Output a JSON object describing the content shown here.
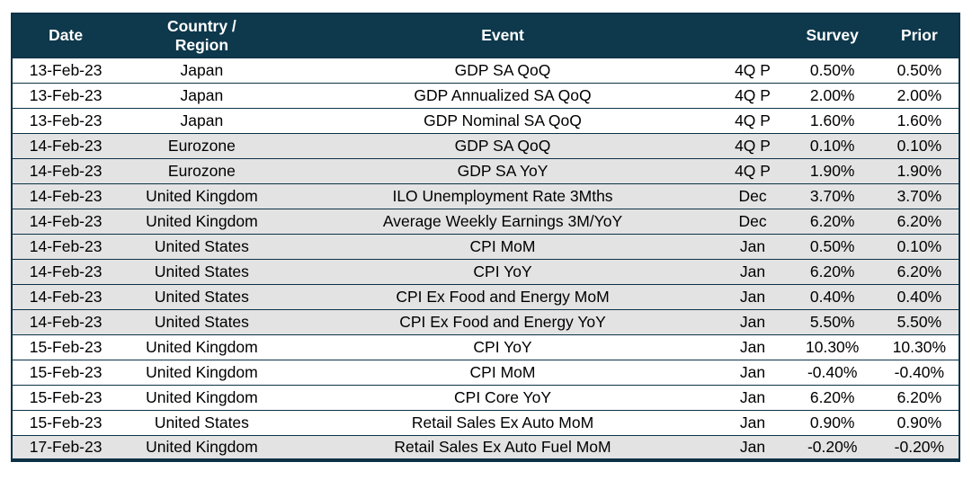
{
  "page": {
    "background": "#ffffff"
  },
  "table": {
    "style": {
      "header_bg": "#0e384c",
      "header_text": "#ffffff",
      "row_bg": "#ffffff",
      "row_alt_bg": "#e3e3e3",
      "border_color": "#0d3246",
      "text_color": "#000000"
    },
    "columns": [
      {
        "key": "date",
        "label": "Date"
      },
      {
        "key": "region",
        "label": "Country / Region"
      },
      {
        "key": "event",
        "label": "Event"
      },
      {
        "key": "period",
        "label": ""
      },
      {
        "key": "survey",
        "label": "Survey"
      },
      {
        "key": "prior",
        "label": "Prior"
      }
    ],
    "rows": [
      {
        "date": "13-Feb-23",
        "region": "Japan",
        "event": "GDP SA QoQ",
        "period": "4Q P",
        "survey": "0.50%",
        "prior": "0.50%",
        "shaded": false
      },
      {
        "date": "13-Feb-23",
        "region": "Japan",
        "event": "GDP Annualized SA QoQ",
        "period": "4Q P",
        "survey": "2.00%",
        "prior": "2.00%",
        "shaded": false
      },
      {
        "date": "13-Feb-23",
        "region": "Japan",
        "event": "GDP Nominal SA QoQ",
        "period": "4Q P",
        "survey": "1.60%",
        "prior": "1.60%",
        "shaded": false
      },
      {
        "date": "14-Feb-23",
        "region": "Eurozone",
        "event": "GDP SA QoQ",
        "period": "4Q P",
        "survey": "0.10%",
        "prior": "0.10%",
        "shaded": true
      },
      {
        "date": "14-Feb-23",
        "region": "Eurozone",
        "event": "GDP SA YoY",
        "period": "4Q P",
        "survey": "1.90%",
        "prior": "1.90%",
        "shaded": true
      },
      {
        "date": "14-Feb-23",
        "region": "United Kingdom",
        "event": "ILO Unemployment Rate 3Mths",
        "period": "Dec",
        "survey": "3.70%",
        "prior": "3.70%",
        "shaded": true
      },
      {
        "date": "14-Feb-23",
        "region": "United Kingdom",
        "event": "Average Weekly Earnings 3M/YoY",
        "period": "Dec",
        "survey": "6.20%",
        "prior": "6.20%",
        "shaded": true
      },
      {
        "date": "14-Feb-23",
        "region": "United States",
        "event": "CPI MoM",
        "period": "Jan",
        "survey": "0.50%",
        "prior": "0.10%",
        "shaded": true
      },
      {
        "date": "14-Feb-23",
        "region": "United States",
        "event": "CPI YoY",
        "period": "Jan",
        "survey": "6.20%",
        "prior": "6.20%",
        "shaded": true
      },
      {
        "date": "14-Feb-23",
        "region": "United States",
        "event": "CPI Ex Food and Energy MoM",
        "period": "Jan",
        "survey": "0.40%",
        "prior": "0.40%",
        "shaded": true
      },
      {
        "date": "14-Feb-23",
        "region": "United States",
        "event": "CPI Ex Food and Energy YoY",
        "period": "Jan",
        "survey": "5.50%",
        "prior": "5.50%",
        "shaded": true
      },
      {
        "date": "15-Feb-23",
        "region": "United Kingdom",
        "event": "CPI YoY",
        "period": "Jan",
        "survey": "10.30%",
        "prior": "10.30%",
        "shaded": false
      },
      {
        "date": "15-Feb-23",
        "region": "United Kingdom",
        "event": "CPI MoM",
        "period": "Jan",
        "survey": "-0.40%",
        "prior": "-0.40%",
        "shaded": false
      },
      {
        "date": "15-Feb-23",
        "region": "United Kingdom",
        "event": "CPI Core YoY",
        "period": "Jan",
        "survey": "6.20%",
        "prior": "6.20%",
        "shaded": false
      },
      {
        "date": "15-Feb-23",
        "region": "United States",
        "event": "Retail Sales Ex Auto MoM",
        "period": "Jan",
        "survey": "0.90%",
        "prior": "0.90%",
        "shaded": false
      },
      {
        "date": "17-Feb-23",
        "region": "United Kingdom",
        "event": "Retail Sales Ex Auto Fuel MoM",
        "period": "Jan",
        "survey": "-0.20%",
        "prior": "-0.20%",
        "shaded": true
      }
    ]
  }
}
